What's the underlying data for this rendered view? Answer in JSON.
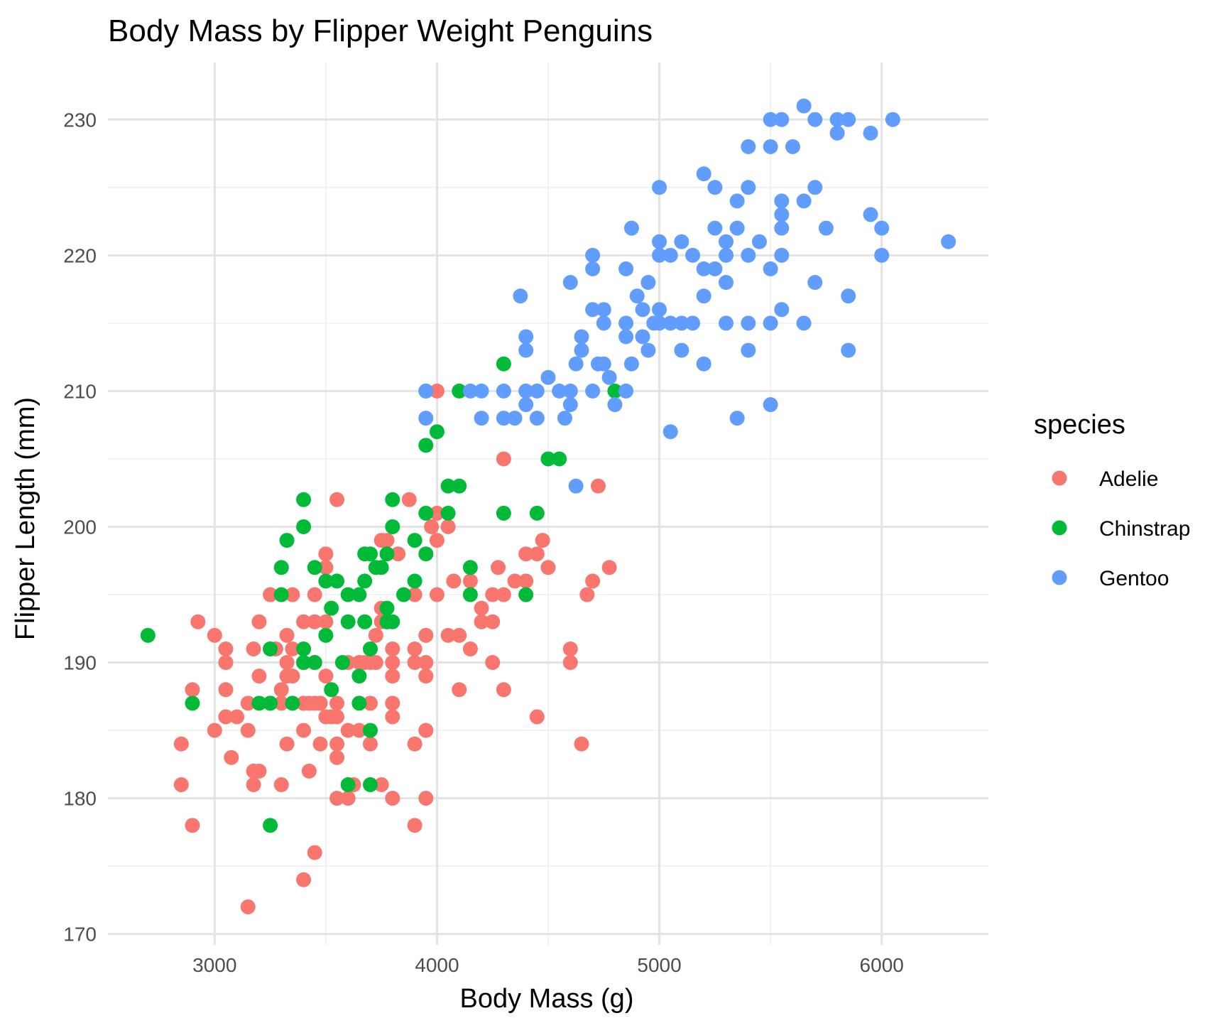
{
  "chart_data": {
    "type": "scatter",
    "title": "Body Mass by Flipper Weight Penguins",
    "xlabel": "Body Mass (g)",
    "ylabel": "Flipper Length (mm)",
    "xlim": [
      2520,
      6480
    ],
    "ylim": [
      169.2,
      234.2
    ],
    "x_ticks": [
      3000,
      4000,
      5000,
      6000
    ],
    "y_ticks": [
      170,
      180,
      190,
      200,
      210,
      220,
      230
    ],
    "x_tick_labels": [
      "3000",
      "4000",
      "5000",
      "6000"
    ],
    "y_tick_labels": [
      "170",
      "180",
      "190",
      "200",
      "210",
      "220",
      "230"
    ],
    "grid": true,
    "legend": {
      "title": "species",
      "position": "right"
    },
    "series": [
      {
        "name": "Adelie",
        "color": "#F8766D",
        "points": [
          [
            2850,
            181
          ],
          [
            2850,
            184
          ],
          [
            2900,
            178
          ],
          [
            2900,
            188
          ],
          [
            2925,
            193
          ],
          [
            3000,
            185
          ],
          [
            3000,
            192
          ],
          [
            3050,
            186
          ],
          [
            3050,
            188
          ],
          [
            3050,
            190
          ],
          [
            3050,
            191
          ],
          [
            3075,
            183
          ],
          [
            3100,
            186
          ],
          [
            3150,
            172
          ],
          [
            3150,
            185
          ],
          [
            3150,
            187
          ],
          [
            3175,
            181
          ],
          [
            3175,
            182
          ],
          [
            3175,
            191
          ],
          [
            3200,
            182
          ],
          [
            3200,
            189
          ],
          [
            3200,
            193
          ],
          [
            3250,
            187
          ],
          [
            3250,
            191
          ],
          [
            3250,
            195
          ],
          [
            3275,
            191
          ],
          [
            3300,
            181
          ],
          [
            3300,
            187
          ],
          [
            3300,
            188
          ],
          [
            3325,
            184
          ],
          [
            3325,
            189
          ],
          [
            3325,
            190
          ],
          [
            3325,
            192
          ],
          [
            3350,
            189
          ],
          [
            3350,
            191
          ],
          [
            3350,
            195
          ],
          [
            3400,
            174
          ],
          [
            3400,
            185
          ],
          [
            3400,
            187
          ],
          [
            3400,
            190
          ],
          [
            3400,
            193
          ],
          [
            3425,
            182
          ],
          [
            3425,
            187
          ],
          [
            3450,
            176
          ],
          [
            3450,
            187
          ],
          [
            3450,
            190
          ],
          [
            3450,
            193
          ],
          [
            3450,
            195
          ],
          [
            3475,
            184
          ],
          [
            3475,
            187
          ],
          [
            3500,
            186
          ],
          [
            3500,
            189
          ],
          [
            3500,
            193
          ],
          [
            3500,
            197
          ],
          [
            3500,
            198
          ],
          [
            3525,
            186
          ],
          [
            3550,
            180
          ],
          [
            3550,
            183
          ],
          [
            3550,
            184
          ],
          [
            3550,
            186
          ],
          [
            3550,
            187
          ],
          [
            3550,
            202
          ],
          [
            3600,
            180
          ],
          [
            3600,
            185
          ],
          [
            3600,
            190
          ],
          [
            3625,
            181
          ],
          [
            3650,
            185
          ],
          [
            3650,
            190
          ],
          [
            3675,
            190
          ],
          [
            3700,
            184
          ],
          [
            3700,
            187
          ],
          [
            3700,
            190
          ],
          [
            3725,
            190
          ],
          [
            3725,
            192
          ],
          [
            3750,
            181
          ],
          [
            3750,
            193
          ],
          [
            3750,
            194
          ],
          [
            3750,
            199
          ],
          [
            3775,
            193
          ],
          [
            3775,
            199
          ],
          [
            3800,
            180
          ],
          [
            3800,
            186
          ],
          [
            3800,
            187
          ],
          [
            3800,
            189
          ],
          [
            3800,
            190
          ],
          [
            3800,
            191
          ],
          [
            3825,
            198
          ],
          [
            3875,
            202
          ],
          [
            3900,
            178
          ],
          [
            3900,
            184
          ],
          [
            3900,
            190
          ],
          [
            3900,
            191
          ],
          [
            3900,
            195
          ],
          [
            3950,
            180
          ],
          [
            3950,
            185
          ],
          [
            3950,
            189
          ],
          [
            3950,
            190
          ],
          [
            3950,
            192
          ],
          [
            3975,
            200
          ],
          [
            4000,
            195
          ],
          [
            4000,
            199
          ],
          [
            4000,
            201
          ],
          [
            4000,
            210
          ],
          [
            4050,
            192
          ],
          [
            4050,
            200
          ],
          [
            4075,
            196
          ],
          [
            4100,
            188
          ],
          [
            4100,
            192
          ],
          [
            4150,
            191
          ],
          [
            4150,
            196
          ],
          [
            4200,
            193
          ],
          [
            4200,
            194
          ],
          [
            4250,
            190
          ],
          [
            4250,
            193
          ],
          [
            4250,
            195
          ],
          [
            4275,
            197
          ],
          [
            4300,
            188
          ],
          [
            4300,
            195
          ],
          [
            4300,
            205
          ],
          [
            4350,
            196
          ],
          [
            4400,
            196
          ],
          [
            4400,
            198
          ],
          [
            4450,
            186
          ],
          [
            4450,
            198
          ],
          [
            4475,
            199
          ],
          [
            4500,
            197
          ],
          [
            4600,
            190
          ],
          [
            4600,
            191
          ],
          [
            4650,
            184
          ],
          [
            4675,
            195
          ],
          [
            4700,
            196
          ],
          [
            4725,
            203
          ],
          [
            4775,
            197
          ]
        ]
      },
      {
        "name": "Chinstrap",
        "color": "#00BA38",
        "points": [
          [
            2700,
            192
          ],
          [
            2900,
            187
          ],
          [
            3250,
            178
          ],
          [
            3250,
            187
          ],
          [
            3250,
            191
          ],
          [
            3200,
            187
          ],
          [
            3300,
            195
          ],
          [
            3300,
            197
          ],
          [
            3325,
            199
          ],
          [
            3350,
            187
          ],
          [
            3400,
            190
          ],
          [
            3400,
            191
          ],
          [
            3400,
            200
          ],
          [
            3400,
            202
          ],
          [
            3450,
            190
          ],
          [
            3450,
            197
          ],
          [
            3500,
            192
          ],
          [
            3500,
            196
          ],
          [
            3525,
            188
          ],
          [
            3525,
            194
          ],
          [
            3550,
            196
          ],
          [
            3575,
            190
          ],
          [
            3600,
            181
          ],
          [
            3600,
            193
          ],
          [
            3600,
            195
          ],
          [
            3650,
            187
          ],
          [
            3650,
            189
          ],
          [
            3650,
            195
          ],
          [
            3675,
            193
          ],
          [
            3675,
            196
          ],
          [
            3675,
            198
          ],
          [
            3700,
            181
          ],
          [
            3700,
            185
          ],
          [
            3700,
            191
          ],
          [
            3700,
            198
          ],
          [
            3725,
            197
          ],
          [
            3750,
            197
          ],
          [
            3775,
            193
          ],
          [
            3775,
            194
          ],
          [
            3775,
            198
          ],
          [
            3800,
            193
          ],
          [
            3800,
            200
          ],
          [
            3800,
            202
          ],
          [
            3850,
            195
          ],
          [
            3900,
            196
          ],
          [
            3900,
            199
          ],
          [
            3950,
            198
          ],
          [
            3950,
            201
          ],
          [
            3950,
            206
          ],
          [
            3950,
            210
          ],
          [
            4000,
            207
          ],
          [
            4050,
            201
          ],
          [
            4050,
            203
          ],
          [
            4100,
            203
          ],
          [
            4100,
            210
          ],
          [
            4150,
            195
          ],
          [
            4150,
            197
          ],
          [
            4300,
            201
          ],
          [
            4300,
            212
          ],
          [
            4400,
            195
          ],
          [
            4450,
            201
          ],
          [
            4500,
            205
          ],
          [
            4550,
            205
          ],
          [
            4800,
            210
          ]
        ]
      },
      {
        "name": "Gentoo",
        "color": "#619CFF",
        "points": [
          [
            3950,
            208
          ],
          [
            3950,
            210
          ],
          [
            4150,
            210
          ],
          [
            4200,
            208
          ],
          [
            4200,
            210
          ],
          [
            4300,
            208
          ],
          [
            4300,
            210
          ],
          [
            4350,
            208
          ],
          [
            4375,
            217
          ],
          [
            4400,
            209
          ],
          [
            4400,
            210
          ],
          [
            4400,
            213
          ],
          [
            4400,
            214
          ],
          [
            4450,
            208
          ],
          [
            4450,
            210
          ],
          [
            4500,
            211
          ],
          [
            4550,
            210
          ],
          [
            4575,
            208
          ],
          [
            4600,
            209
          ],
          [
            4600,
            210
          ],
          [
            4600,
            218
          ],
          [
            4625,
            203
          ],
          [
            4625,
            212
          ],
          [
            4650,
            213
          ],
          [
            4650,
            214
          ],
          [
            4700,
            210
          ],
          [
            4700,
            216
          ],
          [
            4700,
            219
          ],
          [
            4700,
            220
          ],
          [
            4725,
            212
          ],
          [
            4750,
            212
          ],
          [
            4750,
            215
          ],
          [
            4750,
            216
          ],
          [
            4775,
            211
          ],
          [
            4800,
            209
          ],
          [
            4850,
            210
          ],
          [
            4850,
            214
          ],
          [
            4850,
            215
          ],
          [
            4850,
            219
          ],
          [
            4875,
            212
          ],
          [
            4875,
            222
          ],
          [
            4900,
            217
          ],
          [
            4925,
            214
          ],
          [
            4925,
            216
          ],
          [
            4950,
            213
          ],
          [
            4950,
            218
          ],
          [
            4975,
            215
          ],
          [
            5000,
            215
          ],
          [
            5000,
            216
          ],
          [
            5000,
            220
          ],
          [
            5000,
            221
          ],
          [
            5000,
            225
          ],
          [
            5050,
            207
          ],
          [
            5050,
            215
          ],
          [
            5050,
            220
          ],
          [
            5100,
            213
          ],
          [
            5100,
            215
          ],
          [
            5100,
            221
          ],
          [
            5150,
            215
          ],
          [
            5150,
            220
          ],
          [
            5200,
            212
          ],
          [
            5200,
            217
          ],
          [
            5200,
            219
          ],
          [
            5200,
            226
          ],
          [
            5250,
            219
          ],
          [
            5250,
            222
          ],
          [
            5250,
            225
          ],
          [
            5300,
            215
          ],
          [
            5300,
            218
          ],
          [
            5300,
            220
          ],
          [
            5300,
            221
          ],
          [
            5350,
            208
          ],
          [
            5350,
            222
          ],
          [
            5350,
            224
          ],
          [
            5400,
            213
          ],
          [
            5400,
            215
          ],
          [
            5400,
            220
          ],
          [
            5400,
            225
          ],
          [
            5400,
            228
          ],
          [
            5450,
            221
          ],
          [
            5500,
            209
          ],
          [
            5500,
            215
          ],
          [
            5500,
            219
          ],
          [
            5500,
            228
          ],
          [
            5500,
            230
          ],
          [
            5550,
            216
          ],
          [
            5550,
            220
          ],
          [
            5550,
            222
          ],
          [
            5550,
            223
          ],
          [
            5550,
            224
          ],
          [
            5550,
            230
          ],
          [
            5600,
            228
          ],
          [
            5650,
            215
          ],
          [
            5650,
            224
          ],
          [
            5650,
            231
          ],
          [
            5700,
            218
          ],
          [
            5700,
            225
          ],
          [
            5700,
            230
          ],
          [
            5750,
            222
          ],
          [
            5800,
            229
          ],
          [
            5800,
            230
          ],
          [
            5850,
            213
          ],
          [
            5850,
            217
          ],
          [
            5850,
            230
          ],
          [
            5950,
            223
          ],
          [
            5950,
            229
          ],
          [
            6000,
            220
          ],
          [
            6000,
            222
          ],
          [
            6050,
            230
          ],
          [
            6300,
            221
          ]
        ]
      }
    ]
  }
}
